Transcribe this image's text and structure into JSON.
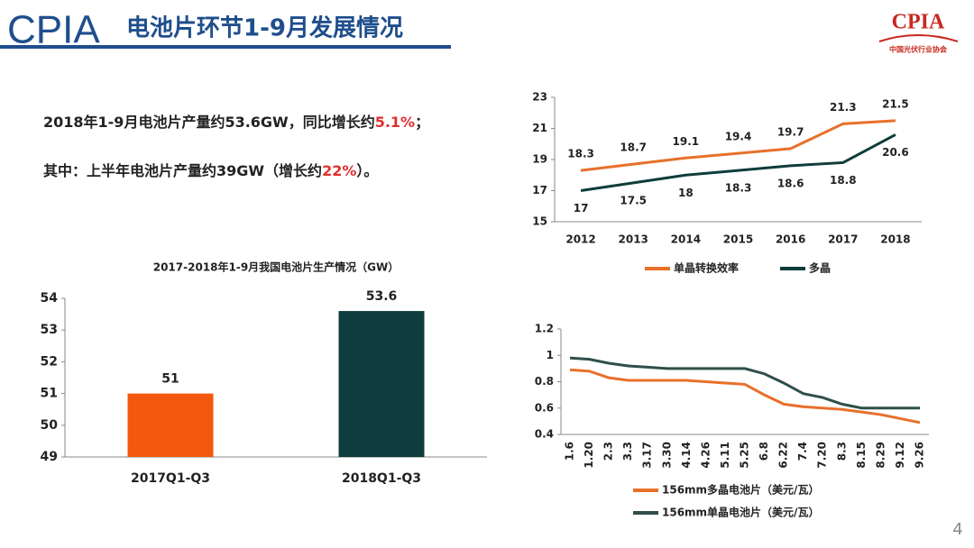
{
  "header": {
    "logo": "CPIA",
    "title": "电池片环节1-9月发展情况",
    "org_logo": "CPIA",
    "org_name": "中国光伏行业协会"
  },
  "bullets": [
    {
      "before": "2018年1-9月电池片产量约53.6GW，同比增长约",
      "highlight": "5.1%",
      "after": "；"
    },
    {
      "before": "其中：上半年电池片产量约39GW（增长约",
      "highlight": "22%",
      "after": "）。"
    }
  ],
  "page_number": "4",
  "chart_data": [
    {
      "type": "line",
      "categories": [
        "2012",
        "2013",
        "2014",
        "2015",
        "2016",
        "2017",
        "2018"
      ],
      "series": [
        {
          "name": "单晶转换效率",
          "color": "#e8702a",
          "values": [
            18.3,
            18.7,
            19.1,
            19.4,
            19.7,
            21.3,
            21.5
          ]
        },
        {
          "name": "多晶",
          "color": "#0f3c3c",
          "values": [
            17,
            17.5,
            18,
            18.3,
            18.6,
            18.8,
            20.6
          ]
        }
      ],
      "ylim": [
        15,
        23
      ],
      "yticks": [
        15,
        17,
        19,
        21,
        23
      ],
      "data_labels": true,
      "legend": "bottom",
      "grid": false
    },
    {
      "type": "bar",
      "title": "2017-2018年1-9月我国电池片生产情况（GW）",
      "categories": [
        "2017Q1-Q3",
        "2018Q1-Q3"
      ],
      "values": [
        51,
        53.6
      ],
      "colors": [
        "#f4580e",
        "#0f3c3c"
      ],
      "ylim": [
        49,
        54
      ],
      "yticks": [
        49,
        50,
        51,
        52,
        53,
        54
      ],
      "data_labels": true,
      "grid": false
    },
    {
      "type": "line",
      "categories": [
        "1.6",
        "1.20",
        "2.3",
        "3.3",
        "3.17",
        "3.30",
        "4.14",
        "4.26",
        "5.11",
        "5.25",
        "6.8",
        "6.22",
        "7.4",
        "7.20",
        "8.3",
        "8.15",
        "8.29",
        "9.12",
        "9.26"
      ],
      "series": [
        {
          "name": "156mm多晶电池片（美元/瓦）",
          "color": "#e8702a",
          "values": [
            0.89,
            0.88,
            0.83,
            0.81,
            0.81,
            0.81,
            0.81,
            0.8,
            0.79,
            0.78,
            0.7,
            0.63,
            0.61,
            0.6,
            0.59,
            0.57,
            0.55,
            0.52,
            0.49
          ]
        },
        {
          "name": "156mm单晶电池片（美元/瓦）",
          "color": "#2f4f4a",
          "values": [
            0.98,
            0.97,
            0.94,
            0.92,
            0.91,
            0.9,
            0.9,
            0.9,
            0.9,
            0.9,
            0.86,
            0.79,
            0.71,
            0.68,
            0.63,
            0.6,
            0.6,
            0.6,
            0.6
          ]
        }
      ],
      "ylim": [
        0.4,
        1.2
      ],
      "yticks": [
        0.4,
        0.6,
        0.8,
        1,
        1.2
      ],
      "data_labels": false,
      "legend": "bottom-stacked",
      "grid": false
    }
  ]
}
